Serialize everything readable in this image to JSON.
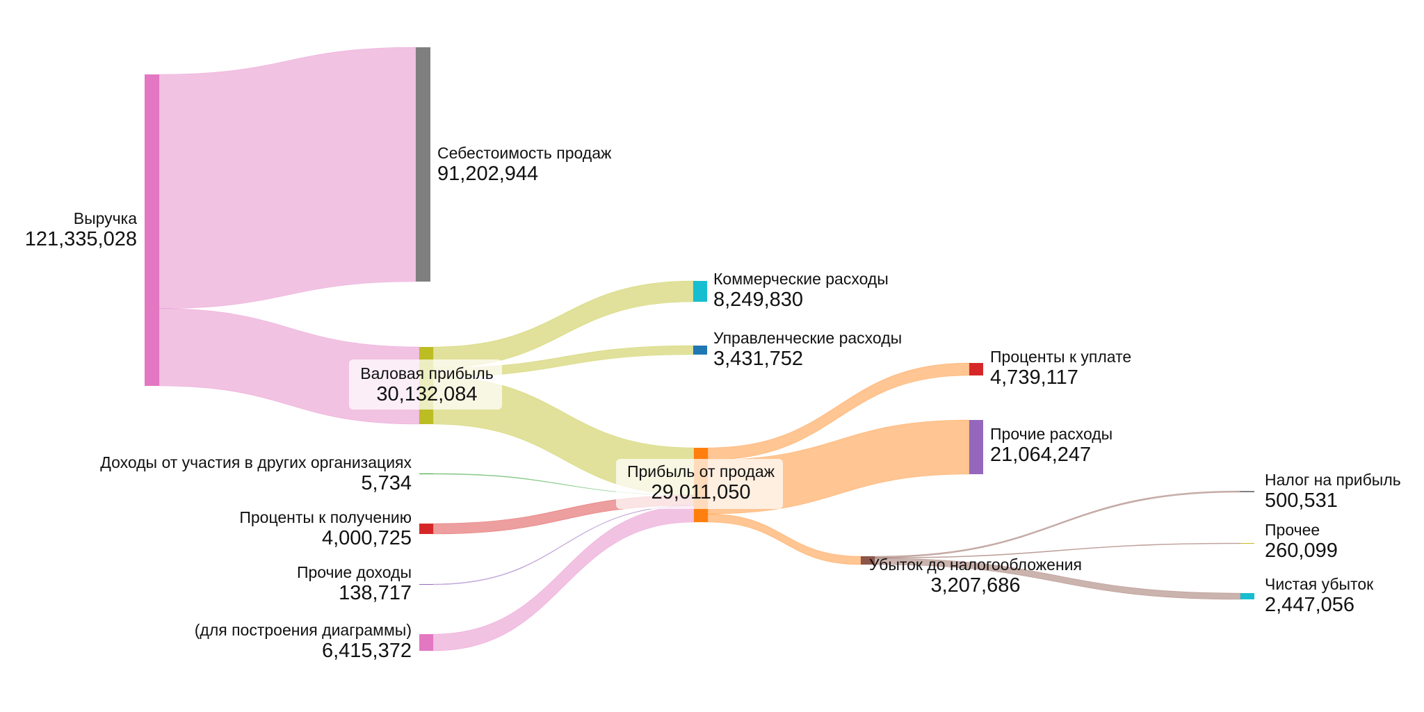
{
  "chart_data": {
    "type": "sankey",
    "nodes": [
      {
        "id": "revenue",
        "label": "Выручка",
        "value": "121,335,028",
        "color": "#e377c2",
        "column": 0
      },
      {
        "id": "cogs",
        "label": "Себестоимость продаж",
        "value": "91,202,944",
        "color": "#7f7f7f",
        "column": 1
      },
      {
        "id": "gross",
        "label": "Валовая прибыль",
        "value": "30,132,084",
        "color": "#bcbd22",
        "column": 1
      },
      {
        "id": "commercial",
        "label": "Коммерческие расходы",
        "value": "8,249,830",
        "color": "#17becf",
        "column": 2
      },
      {
        "id": "admin",
        "label": "Управленческие расходы",
        "value": "3,431,752",
        "color": "#1f77b4",
        "column": 2
      },
      {
        "id": "sales_profit",
        "label": "Прибыль от продаж",
        "value": "29,011,050",
        "color": "#ff7f0e",
        "column": 2
      },
      {
        "id": "participation",
        "label": "Доходы от участия в других организациях",
        "value": "5,734",
        "color": "#2ca02c",
        "column": 1
      },
      {
        "id": "int_recv",
        "label": "Проценты к получению",
        "value": "4,000,725",
        "color": "#d62728",
        "column": 1
      },
      {
        "id": "other_inc",
        "label": "Прочие доходы",
        "value": "138,717",
        "color": "#9467bd",
        "column": 1
      },
      {
        "id": "plug",
        "label": "(для построения диаграммы)",
        "value": "6,415,372",
        "color": "#e377c2",
        "column": 1
      },
      {
        "id": "int_pay",
        "label": "Проценты к уплате",
        "value": "4,739,117",
        "color": "#d62728",
        "column": 3
      },
      {
        "id": "other_exp",
        "label": "Прочие расходы",
        "value": "21,064,247",
        "color": "#9467bd",
        "column": 3
      },
      {
        "id": "pretax_loss",
        "label": "Убыток до налогообложения",
        "value": "3,207,686",
        "color": "#8c564b",
        "column": 3
      },
      {
        "id": "tax",
        "label": "Налог на прибыль",
        "value": "500,531",
        "color": "#7f7f7f",
        "column": 4
      },
      {
        "id": "other",
        "label": "Прочее",
        "value": "260,099",
        "color": "#bcbd22",
        "column": 4
      },
      {
        "id": "net_loss",
        "label": "Чистая убыток",
        "value": "2,447,056",
        "color": "#17becf",
        "column": 4
      }
    ],
    "links": [
      {
        "source": "revenue",
        "target": "cogs",
        "value": 91202944
      },
      {
        "source": "revenue",
        "target": "gross",
        "value": 30132084
      },
      {
        "source": "gross",
        "target": "commercial",
        "value": 8249830
      },
      {
        "source": "gross",
        "target": "admin",
        "value": 3431752
      },
      {
        "source": "gross",
        "target": "sales_profit",
        "value": 18450502
      },
      {
        "source": "participation",
        "target": "sales_profit",
        "value": 5734
      },
      {
        "source": "int_recv",
        "target": "sales_profit",
        "value": 4000725
      },
      {
        "source": "other_inc",
        "target": "sales_profit",
        "value": 138717
      },
      {
        "source": "plug",
        "target": "sales_profit",
        "value": 6415372
      },
      {
        "source": "sales_profit",
        "target": "int_pay",
        "value": 4739117
      },
      {
        "source": "sales_profit",
        "target": "other_exp",
        "value": 21064247
      },
      {
        "source": "sales_profit",
        "target": "pretax_loss",
        "value": 3207686
      },
      {
        "source": "pretax_loss",
        "target": "tax",
        "value": 500531
      },
      {
        "source": "pretax_loss",
        "target": "other",
        "value": 260099
      },
      {
        "source": "pretax_loss",
        "target": "net_loss",
        "value": 2447056
      }
    ]
  }
}
